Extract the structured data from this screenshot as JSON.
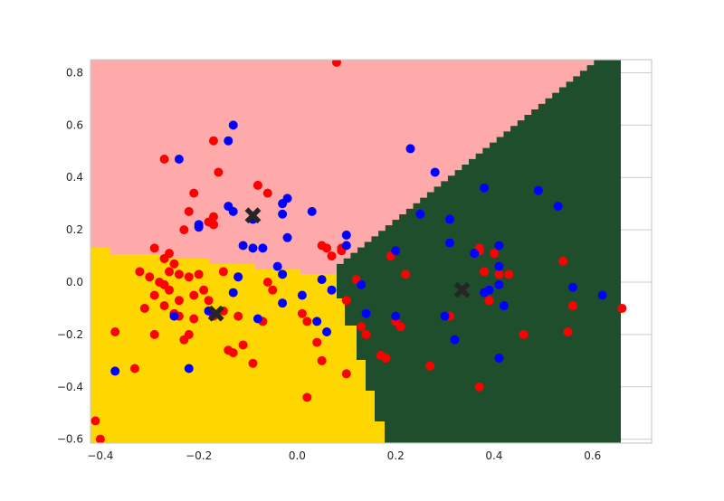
{
  "chart_data": {
    "type": "scatter",
    "title": "",
    "xlabel": "",
    "ylabel": "",
    "xlim": [
      -0.42,
      0.72
    ],
    "ylim": [
      -0.615,
      0.85
    ],
    "xticks": [
      -0.4,
      -0.2,
      0.0,
      0.2,
      0.4,
      0.6
    ],
    "xtick_labels": [
      "−0.4",
      "−0.2",
      "0.0",
      "0.2",
      "0.4",
      "0.6"
    ],
    "yticks": [
      -0.6,
      -0.4,
      -0.2,
      0.0,
      0.2,
      0.4,
      0.6,
      0.8
    ],
    "ytick_labels": [
      "−0.6",
      "−0.4",
      "−0.2",
      "0.0",
      "0.2",
      "0.4",
      "0.6",
      "0.8"
    ],
    "grid": true,
    "legend": "none",
    "decision_regions": [
      {
        "class": 0,
        "color": "#ffaaaa"
      },
      {
        "class": 1,
        "color": "#ffd700"
      },
      {
        "class": 2,
        "color": "#1f4e2c"
      }
    ],
    "series": [
      {
        "color": "#ff0000",
        "x": [
          0.08,
          -0.17,
          -0.27,
          -0.16,
          -0.21,
          -0.08,
          -0.06,
          -0.22,
          -0.18,
          -0.17,
          -0.23,
          -0.26,
          -0.29,
          -0.27,
          -0.25,
          -0.32,
          -0.3,
          -0.28,
          -0.27,
          -0.24,
          -0.22,
          -0.2,
          -0.19,
          -0.15,
          -0.12,
          -0.29,
          -0.26,
          -0.24,
          -0.21,
          -0.18,
          -0.31,
          -0.27,
          -0.25,
          -0.24,
          -0.21,
          -0.17,
          -0.15,
          -0.12,
          -0.07,
          -0.06,
          -0.05,
          -0.37,
          -0.29,
          -0.23,
          -0.22,
          -0.14,
          -0.13,
          -0.11,
          -0.33,
          -0.09,
          0.05,
          0.06,
          0.07,
          0.09,
          0.09,
          0.1,
          0.01,
          0.02,
          0.04,
          0.05,
          -0.41,
          -0.4,
          0.13,
          0.12,
          0.14,
          0.17,
          0.18,
          0.19,
          0.2,
          0.21,
          0.22,
          0.27,
          0.31,
          0.37,
          0.37,
          0.38,
          0.39,
          0.4,
          0.41,
          0.43,
          0.46,
          0.54,
          0.56,
          0.55,
          0.66,
          0.37,
          0.1,
          -0.17,
          -0.17,
          -0.26,
          0.02
        ],
        "y": [
          0.84,
          0.54,
          0.47,
          0.42,
          0.34,
          0.37,
          0.34,
          0.27,
          0.23,
          0.22,
          0.2,
          0.11,
          0.13,
          0.09,
          0.07,
          0.04,
          0.02,
          0.0,
          -0.01,
          0.03,
          0.02,
          0.03,
          -0.03,
          0.04,
          0.02,
          -0.05,
          -0.03,
          -0.07,
          -0.05,
          -0.07,
          -0.1,
          -0.09,
          -0.12,
          -0.13,
          -0.14,
          -0.13,
          -0.11,
          -0.13,
          -0.15,
          0.0,
          -0.03,
          -0.19,
          -0.2,
          -0.22,
          -0.2,
          -0.26,
          -0.27,
          -0.24,
          -0.33,
          -0.31,
          0.14,
          0.13,
          0.1,
          0.12,
          0.13,
          -0.07,
          -0.12,
          -0.15,
          -0.23,
          -0.3,
          -0.53,
          -0.6,
          -0.17,
          0.01,
          -0.2,
          -0.28,
          -0.29,
          0.1,
          -0.15,
          -0.17,
          0.03,
          -0.32,
          -0.13,
          0.13,
          -0.4,
          0.04,
          -0.07,
          0.11,
          0.03,
          0.03,
          -0.2,
          0.08,
          -0.09,
          -0.19,
          -0.1,
          0.12,
          -0.35,
          0.25,
          0.22,
          0.04,
          -0.44
        ]
      },
      {
        "color": "#0000ff",
        "x": [
          -0.13,
          -0.14,
          -0.24,
          -0.2,
          -0.14,
          -0.02,
          -0.03,
          -0.13,
          -0.2,
          -0.03,
          -0.09,
          -0.07,
          -0.02,
          0.03,
          0.1,
          0.1,
          -0.11,
          -0.09,
          -0.12,
          -0.04,
          -0.03,
          -0.13,
          0.05,
          0.07,
          0.01,
          -0.08,
          -0.25,
          -0.22,
          -0.37,
          -0.18,
          -0.03,
          0.04,
          0.06,
          0.23,
          0.28,
          0.25,
          0.31,
          0.31,
          0.38,
          0.41,
          0.49,
          0.53,
          0.13,
          0.2,
          0.36,
          0.38,
          0.39,
          0.41,
          0.41,
          0.42,
          0.14,
          0.2,
          0.3,
          0.32,
          0.41,
          0.56,
          0.62
        ],
        "y": [
          0.6,
          0.54,
          0.47,
          0.22,
          0.29,
          0.32,
          0.3,
          0.27,
          0.21,
          0.26,
          0.24,
          0.13,
          0.17,
          0.27,
          0.18,
          0.14,
          0.14,
          0.13,
          0.02,
          0.06,
          0.03,
          -0.04,
          0.01,
          -0.03,
          -0.05,
          -0.14,
          -0.13,
          -0.33,
          -0.34,
          -0.11,
          -0.08,
          -0.15,
          -0.19,
          0.51,
          0.42,
          0.26,
          0.24,
          0.15,
          0.36,
          0.14,
          0.35,
          0.29,
          -0.01,
          0.12,
          0.11,
          -0.04,
          -0.03,
          0.06,
          -0.01,
          -0.09,
          -0.12,
          -0.13,
          -0.13,
          -0.22,
          -0.29,
          -0.02,
          -0.05
        ]
      }
    ],
    "centroids": {
      "marker": "X",
      "color": "#262626",
      "x": [
        -0.09,
        -0.165,
        0.335
      ],
      "y": [
        0.255,
        -0.12,
        -0.03
      ]
    }
  }
}
